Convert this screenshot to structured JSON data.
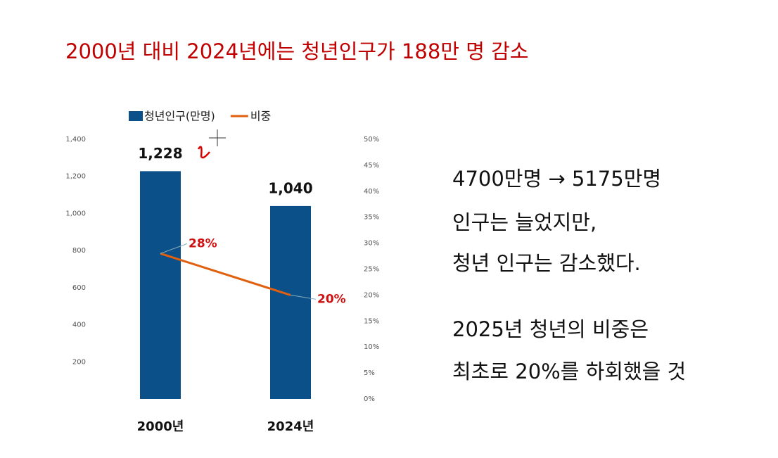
{
  "chart_data": {
    "type": "bar-line",
    "title": "2000년 대비 2024년에는 청년인구가 188만 명 감소",
    "categories": [
      "2000년",
      "2024년"
    ],
    "series": [
      {
        "name": "청년인구(만명)",
        "type": "bar",
        "color": "#0b5089",
        "values": [
          1228,
          1040
        ],
        "value_labels": [
          "1,228",
          "1,040"
        ]
      },
      {
        "name": "비중",
        "type": "line",
        "axis": "y2",
        "color": "#e0600f",
        "values": [
          28,
          20
        ],
        "value_labels": [
          "28%",
          "20%"
        ]
      }
    ],
    "ylim": [
      0,
      1400
    ],
    "yticks": [
      {
        "value": 200,
        "label": "200"
      },
      {
        "value": 400,
        "label": "400"
      },
      {
        "value": 600,
        "label": "600"
      },
      {
        "value": 800,
        "label": "800"
      },
      {
        "value": 1000,
        "label": "1,000"
      },
      {
        "value": 1200,
        "label": "1,200"
      },
      {
        "value": 1400,
        "label": "1,400"
      }
    ],
    "y2lim": [
      0,
      50
    ],
    "y2ticks": [
      {
        "value": 0,
        "label": "0%"
      },
      {
        "value": 5,
        "label": "5%"
      },
      {
        "value": 10,
        "label": "10%"
      },
      {
        "value": 15,
        "label": "15%"
      },
      {
        "value": 20,
        "label": "20%"
      },
      {
        "value": 25,
        "label": "25%"
      },
      {
        "value": 30,
        "label": "30%"
      },
      {
        "value": 35,
        "label": "35%"
      },
      {
        "value": 40,
        "label": "40%"
      },
      {
        "value": 45,
        "label": "45%"
      },
      {
        "value": 50,
        "label": "50%"
      }
    ],
    "grid": false,
    "legend": "top"
  },
  "notes": [
    "4700만명 → 5175만명",
    "인구는 늘었지만,",
    "청년 인구는 감소했다.",
    "2025년 청년의 비중은",
    "최초로 20%를 하회했을 것"
  ]
}
